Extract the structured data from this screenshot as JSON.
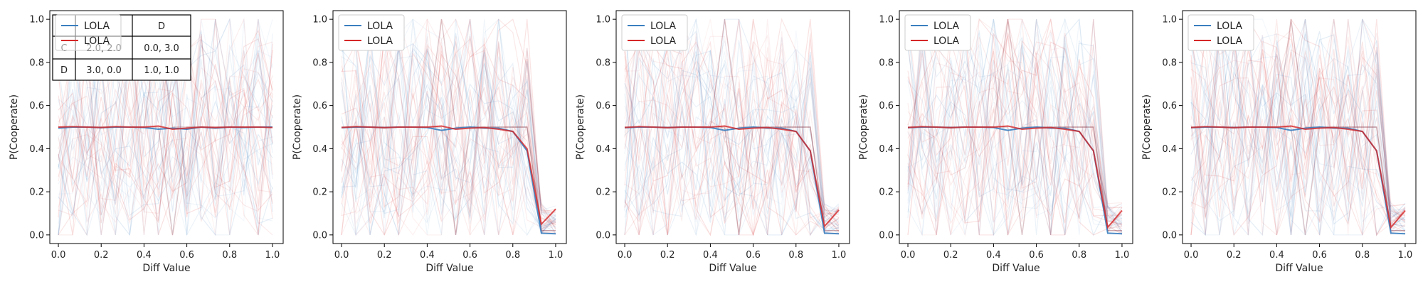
{
  "chart_data": [
    {
      "type": "line",
      "xlabel": "Diff Value",
      "ylabel": "P(Cooperate)",
      "xlim": [
        -0.04,
        1.05
      ],
      "ylim": [
        -0.04,
        1.04
      ],
      "xticks": [
        "0.0",
        "0.2",
        "0.4",
        "0.6",
        "0.8",
        "1.0"
      ],
      "yticks": [
        "0.0",
        "0.2",
        "0.4",
        "0.6",
        "0.8",
        "1.0"
      ],
      "grid": false,
      "legend_placement": "top-left",
      "legend": [
        {
          "label": "LOLA",
          "color": "#3a7ebf"
        },
        {
          "label": "LOLA",
          "color": "#d62728"
        }
      ],
      "x": [
        0.0,
        0.0667,
        0.1333,
        0.2,
        0.2667,
        0.3333,
        0.4,
        0.4667,
        0.5333,
        0.6,
        0.6667,
        0.7333,
        0.8,
        0.8667,
        0.9333,
        1.0
      ],
      "series": [
        {
          "values": [
            0.495,
            0.5,
            0.5,
            0.497,
            0.5,
            0.5,
            0.498,
            0.49,
            0.495,
            0.49,
            0.5,
            0.495,
            0.5,
            0.498,
            0.5,
            0.5
          ],
          "color": "#3a7ebf"
        },
        {
          "values": [
            0.5,
            0.502,
            0.5,
            0.498,
            0.502,
            0.5,
            0.5,
            0.505,
            0.49,
            0.495,
            0.5,
            0.498,
            0.5,
            0.5,
            0.5,
            0.498
          ],
          "color": "#d62728"
        }
      ],
      "payoff_table": {
        "header": [
          "",
          "",
          "D"
        ],
        "rows": [
          [
            "C",
            "2.0, 2.0",
            "0.0, 3.0"
          ],
          [
            "D",
            "3.0, 0.0",
            "1.0, 1.0"
          ]
        ]
      }
    },
    {
      "type": "line",
      "xlabel": "Diff Value",
      "ylabel": "P(Cooperate)",
      "xlim": [
        -0.04,
        1.05
      ],
      "ylim": [
        -0.04,
        1.04
      ],
      "xticks": [
        "0.0",
        "0.2",
        "0.4",
        "0.6",
        "0.8",
        "1.0"
      ],
      "yticks": [
        "0.0",
        "0.2",
        "0.4",
        "0.6",
        "0.8",
        "1.0"
      ],
      "grid": false,
      "legend_placement": "top-left",
      "legend": [
        {
          "label": "LOLA",
          "color": "#3a7ebf"
        },
        {
          "label": "LOLA",
          "color": "#d62728"
        }
      ],
      "x": [
        0.0,
        0.0667,
        0.1333,
        0.2,
        0.2667,
        0.3333,
        0.4,
        0.4667,
        0.5333,
        0.6,
        0.6667,
        0.7333,
        0.8,
        0.8667,
        0.9333,
        1.0
      ],
      "series": [
        {
          "values": [
            0.497,
            0.5,
            0.5,
            0.497,
            0.5,
            0.5,
            0.498,
            0.485,
            0.495,
            0.5,
            0.495,
            0.495,
            0.48,
            0.39,
            0.008,
            0.005
          ],
          "color": "#3a7ebf"
        },
        {
          "values": [
            0.498,
            0.502,
            0.5,
            0.497,
            0.5,
            0.5,
            0.5,
            0.505,
            0.49,
            0.495,
            0.498,
            0.49,
            0.48,
            0.4,
            0.05,
            0.12
          ],
          "color": "#d62728"
        }
      ]
    },
    {
      "type": "line",
      "xlabel": "Diff Value",
      "ylabel": "P(Cooperate)",
      "xlim": [
        -0.04,
        1.05
      ],
      "ylim": [
        -0.04,
        1.04
      ],
      "xticks": [
        "0.0",
        "0.2",
        "0.4",
        "0.6",
        "0.8",
        "1.0"
      ],
      "yticks": [
        "0.0",
        "0.2",
        "0.4",
        "0.6",
        "0.8",
        "1.0"
      ],
      "grid": false,
      "legend_placement": "top-left",
      "legend": [
        {
          "label": "LOLA",
          "color": "#3a7ebf"
        },
        {
          "label": "LOLA",
          "color": "#d62728"
        }
      ],
      "x": [
        0.0,
        0.0667,
        0.1333,
        0.2,
        0.2667,
        0.3333,
        0.4,
        0.4667,
        0.5333,
        0.6,
        0.6667,
        0.7333,
        0.8,
        0.8667,
        0.9333,
        1.0
      ],
      "series": [
        {
          "values": [
            0.497,
            0.5,
            0.5,
            0.497,
            0.5,
            0.5,
            0.498,
            0.485,
            0.495,
            0.5,
            0.495,
            0.495,
            0.48,
            0.39,
            0.008,
            0.005
          ],
          "color": "#3a7ebf"
        },
        {
          "values": [
            0.498,
            0.502,
            0.5,
            0.497,
            0.5,
            0.5,
            0.5,
            0.505,
            0.49,
            0.495,
            0.498,
            0.49,
            0.48,
            0.39,
            0.04,
            0.115
          ],
          "color": "#d62728"
        }
      ]
    },
    {
      "type": "line",
      "xlabel": "Diff Value",
      "ylabel": "P(Cooperate)",
      "xlim": [
        -0.04,
        1.05
      ],
      "ylim": [
        -0.04,
        1.04
      ],
      "xticks": [
        "0.0",
        "0.2",
        "0.4",
        "0.6",
        "0.8",
        "1.0"
      ],
      "yticks": [
        "0.0",
        "0.2",
        "0.4",
        "0.6",
        "0.8",
        "1.0"
      ],
      "grid": false,
      "legend_placement": "top-left",
      "legend": [
        {
          "label": "LOLA",
          "color": "#3a7ebf"
        },
        {
          "label": "LOLA",
          "color": "#d62728"
        }
      ],
      "x": [
        0.0,
        0.0667,
        0.1333,
        0.2,
        0.2667,
        0.3333,
        0.4,
        0.4667,
        0.5333,
        0.6,
        0.6667,
        0.7333,
        0.8,
        0.8667,
        0.9333,
        1.0
      ],
      "series": [
        {
          "values": [
            0.497,
            0.5,
            0.5,
            0.497,
            0.5,
            0.5,
            0.498,
            0.485,
            0.495,
            0.5,
            0.495,
            0.495,
            0.48,
            0.39,
            0.008,
            0.005
          ],
          "color": "#3a7ebf"
        },
        {
          "values": [
            0.498,
            0.502,
            0.5,
            0.497,
            0.5,
            0.5,
            0.5,
            0.505,
            0.49,
            0.495,
            0.498,
            0.49,
            0.48,
            0.39,
            0.035,
            0.113
          ],
          "color": "#d62728"
        }
      ]
    },
    {
      "type": "line",
      "xlabel": "Diff Value",
      "ylabel": "P(Cooperate)",
      "xlim": [
        -0.04,
        1.05
      ],
      "ylim": [
        -0.04,
        1.04
      ],
      "xticks": [
        "0.0",
        "0.2",
        "0.4",
        "0.6",
        "0.8",
        "1.0"
      ],
      "yticks": [
        "0.0",
        "0.2",
        "0.4",
        "0.6",
        "0.8",
        "1.0"
      ],
      "grid": false,
      "legend_placement": "top-left",
      "legend": [
        {
          "label": "LOLA",
          "color": "#3a7ebf"
        },
        {
          "label": "LOLA",
          "color": "#d62728"
        }
      ],
      "x": [
        0.0,
        0.0667,
        0.1333,
        0.2,
        0.2667,
        0.3333,
        0.4,
        0.4667,
        0.5333,
        0.6,
        0.6667,
        0.7333,
        0.8,
        0.8667,
        0.9333,
        1.0
      ],
      "series": [
        {
          "values": [
            0.497,
            0.5,
            0.5,
            0.497,
            0.5,
            0.5,
            0.498,
            0.485,
            0.495,
            0.5,
            0.495,
            0.495,
            0.48,
            0.39,
            0.008,
            0.005
          ],
          "color": "#3a7ebf"
        },
        {
          "values": [
            0.498,
            0.502,
            0.5,
            0.497,
            0.5,
            0.5,
            0.5,
            0.505,
            0.49,
            0.495,
            0.498,
            0.49,
            0.48,
            0.39,
            0.035,
            0.113
          ],
          "color": "#d62728"
        }
      ]
    }
  ]
}
